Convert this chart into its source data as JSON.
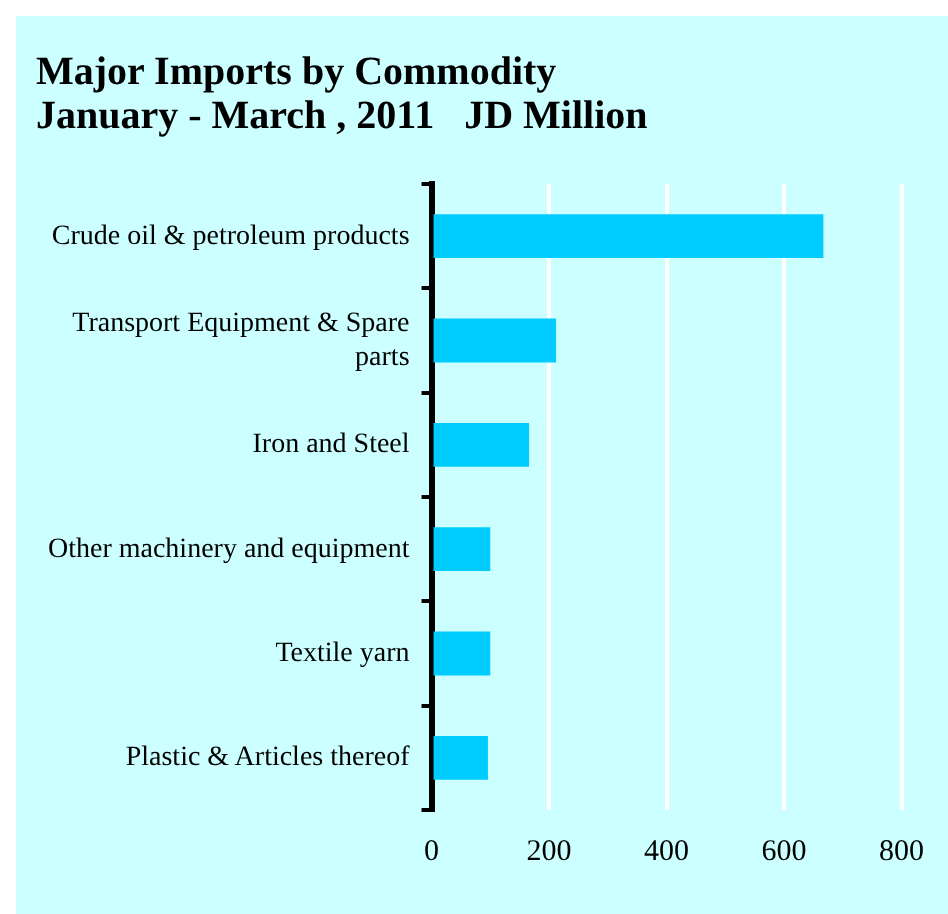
{
  "chart_data": {
    "type": "bar",
    "orientation": "horizontal",
    "title": "Major Imports by Commodity\nJanuary - March , 2011   JD Million",
    "categories": [
      "Crude oil & petroleum products",
      "Transport Equipment & Spare parts",
      "Iron and Steel",
      "Other machinery and equipment",
      "Textile yarn",
      "Plastic & Articles thereof"
    ],
    "values": [
      667,
      212,
      166,
      100,
      100,
      96
    ],
    "color": "#00ccff",
    "xlim": [
      0,
      800
    ],
    "xticks": [
      0,
      200,
      400,
      600,
      800
    ],
    "grid": "x",
    "legend": false
  }
}
